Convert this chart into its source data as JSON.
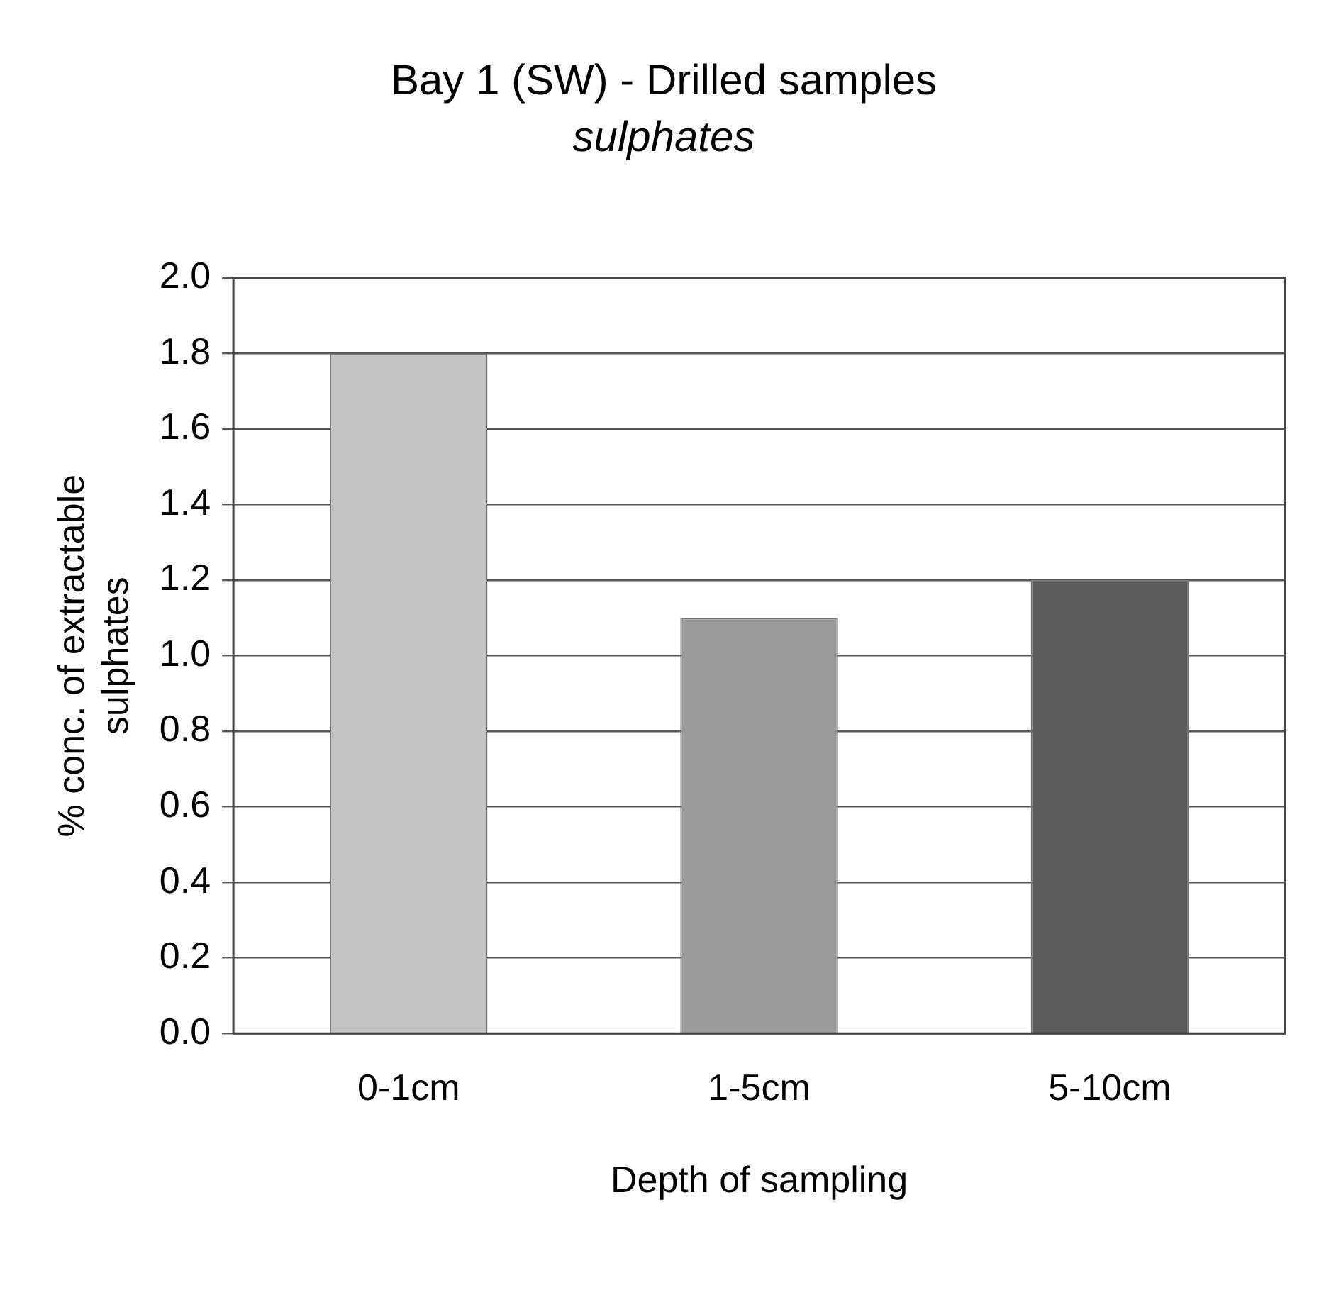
{
  "chart_data": {
    "type": "bar",
    "title": "Bay 1 (SW) - Drilled samples",
    "subtitle": "sulphates",
    "xlabel": "Depth of sampling",
    "ylabel": "% conc. of extractable sulphates",
    "categories": [
      "0-1cm",
      "1-5cm",
      "5-10cm"
    ],
    "values": [
      1.8,
      1.1,
      1.2
    ],
    "colors": [
      "#c4c4c4",
      "#9a9a9a",
      "#5a5a5a"
    ],
    "ylim": [
      0,
      2
    ],
    "yticks": [
      {
        "value": 0,
        "label": "0.0"
      },
      {
        "value": 0.2,
        "label": "0.2"
      },
      {
        "value": 0.4,
        "label": "0.4"
      },
      {
        "value": 0.6,
        "label": "0.6"
      },
      {
        "value": 0.8,
        "label": "0.8"
      },
      {
        "value": 1,
        "label": "1.0"
      },
      {
        "value": 1.2,
        "label": "1.2"
      },
      {
        "value": 1.4,
        "label": "1.4"
      },
      {
        "value": 1.6,
        "label": "1.6"
      },
      {
        "value": 1.8,
        "label": "1.8"
      },
      {
        "value": 2,
        "label": "2.0"
      }
    ],
    "grid": "y",
    "legend": false
  }
}
